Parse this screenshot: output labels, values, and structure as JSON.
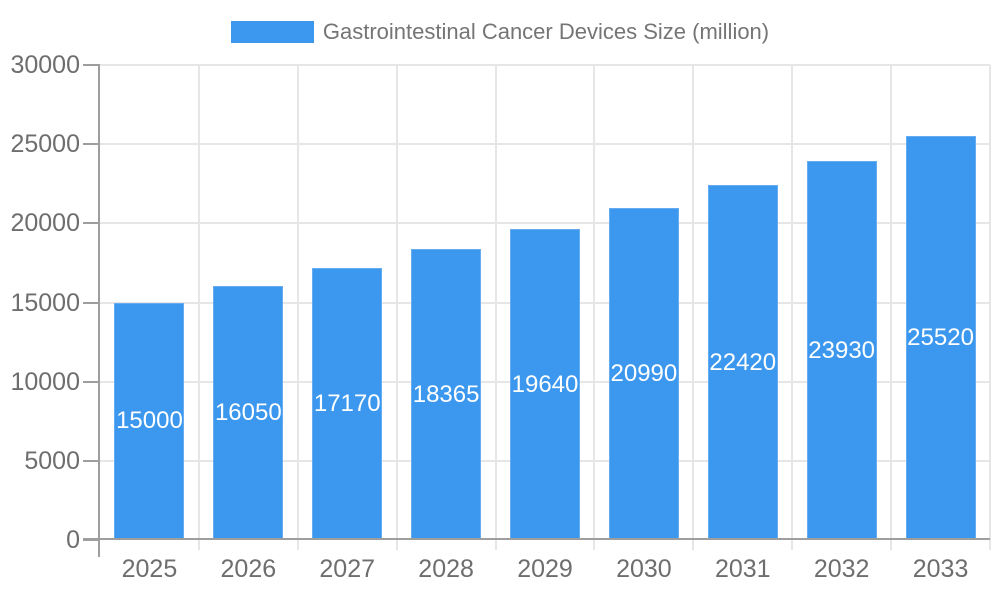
{
  "chart_data": {
    "type": "bar",
    "title": "Gastrointestinal Cancer Devices Size (million)",
    "categories": [
      "2025",
      "2026",
      "2027",
      "2028",
      "2029",
      "2030",
      "2031",
      "2032",
      "2033"
    ],
    "values": [
      15000,
      16050,
      17170,
      18365,
      19640,
      20990,
      22420,
      23930,
      25520
    ],
    "xlabel": "",
    "ylabel": "",
    "ylim": [
      0,
      30000
    ],
    "yticks": [
      0,
      5000,
      10000,
      15000,
      20000,
      25000,
      30000
    ],
    "grid": true,
    "legend_position": "top-center",
    "value_labels": "inside-center",
    "colors": {
      "bar": "#3c98ee",
      "bar_edge": "#65acf1",
      "value_label": "#ffffff",
      "axis_label": "#6e6e6e",
      "title": "#757575",
      "axis_line": "#9e9e9e",
      "gridline": "#e6e6e6",
      "background": "#ffffff"
    }
  }
}
